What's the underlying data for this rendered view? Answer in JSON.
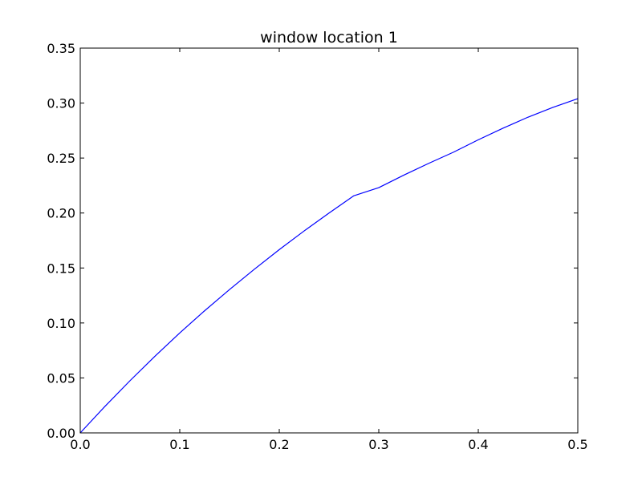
{
  "chart_data": {
    "type": "line",
    "title": "window location 1",
    "xlabel": "",
    "ylabel": "",
    "xlim": [
      0.0,
      0.5
    ],
    "ylim": [
      0.0,
      0.35
    ],
    "x_ticks": [
      0.0,
      0.1,
      0.2,
      0.3,
      0.4,
      0.5
    ],
    "x_tick_labels": [
      "0.0",
      "0.1",
      "0.2",
      "0.3",
      "0.4",
      "0.5"
    ],
    "y_ticks": [
      0.0,
      0.05,
      0.1,
      0.15,
      0.2,
      0.25,
      0.3,
      0.35
    ],
    "y_tick_labels": [
      "0.00",
      "0.05",
      "0.10",
      "0.15",
      "0.20",
      "0.25",
      "0.30",
      "0.35"
    ],
    "grid": false,
    "legend": "none",
    "series": [
      {
        "color": "#0000ff",
        "x": [
          0.0,
          0.025,
          0.05,
          0.075,
          0.1,
          0.125,
          0.15,
          0.175,
          0.2,
          0.225,
          0.25,
          0.275,
          0.3,
          0.325,
          0.35,
          0.375,
          0.4,
          0.425,
          0.45,
          0.475,
          0.5
        ],
        "y": [
          0.0,
          0.0243,
          0.0475,
          0.0697,
          0.0909,
          0.1111,
          0.1304,
          0.1489,
          0.1667,
          0.1837,
          0.2,
          0.2157,
          0.2231,
          0.2344,
          0.2451,
          0.2553,
          0.2666,
          0.2772,
          0.2872,
          0.2961,
          0.304
        ]
      }
    ]
  }
}
